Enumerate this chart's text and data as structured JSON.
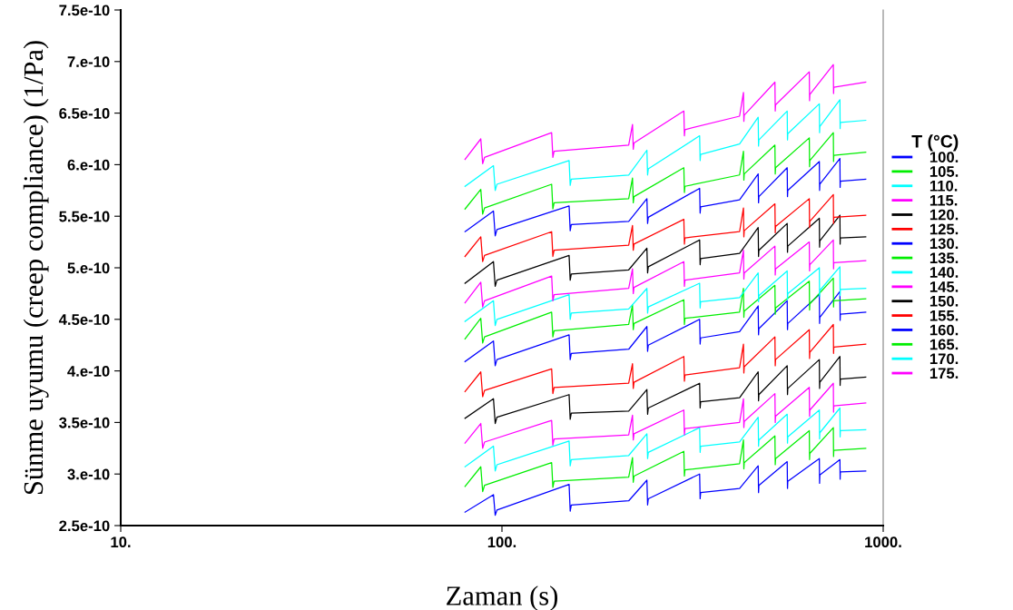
{
  "chart_data": {
    "type": "line",
    "xlabel": "Zaman (s)",
    "ylabel": "Sünme uyumu (creep compliance) (1/Pa)",
    "legend_title": "T (°C)",
    "log": "x",
    "xlim": [
      10,
      1000
    ],
    "xticks": [
      {
        "value": 10,
        "label": "10."
      },
      {
        "value": 100,
        "label": "100."
      },
      {
        "value": 1000,
        "label": "1000."
      }
    ],
    "ylim": [
      2.5e-10,
      7.5e-10
    ],
    "yticks": [
      {
        "value": 2.5e-10,
        "label": "2.5e-10"
      },
      {
        "value": 3e-10,
        "label": "3.e-10"
      },
      {
        "value": 3.5e-10,
        "label": "3.5e-10"
      },
      {
        "value": 4e-10,
        "label": "4.e-10"
      },
      {
        "value": 4.5e-10,
        "label": "4.5e-10"
      },
      {
        "value": 5e-10,
        "label": "5.e-10"
      },
      {
        "value": 5.5e-10,
        "label": "5.5e-10"
      },
      {
        "value": 6e-10,
        "label": "6.e-10"
      },
      {
        "value": 6.5e-10,
        "label": "6.5e-10"
      },
      {
        "value": 7e-10,
        "label": "7.e-10"
      },
      {
        "value": 7.5e-10,
        "label": "7.5e-10"
      }
    ],
    "grid": false,
    "legend": "right",
    "series": [
      {
        "name": "100.",
        "color": "#0000ff",
        "x": [
          80,
          95,
          96,
          97,
          150,
          151,
          152,
          215,
          240,
          241,
          242,
          330,
          331,
          332,
          420,
          470,
          471,
          472,
          560,
          561,
          562,
          680,
          681,
          682,
          770,
          771,
          772,
          900
        ],
        "values": [
          2.63e-10,
          2.8e-10,
          2.6e-10,
          2.65e-10,
          2.9e-10,
          2.64e-10,
          2.7e-10,
          2.74e-10,
          2.94e-10,
          2.7e-10,
          2.76e-10,
          3e-10,
          2.76e-10,
          2.82e-10,
          2.86e-10,
          3.08e-10,
          2.82e-10,
          2.89e-10,
          3.12e-10,
          2.86e-10,
          2.93e-10,
          3.15e-10,
          2.91e-10,
          2.99e-10,
          3.14e-10,
          2.95e-10,
          3.02e-10,
          3.03e-10
        ]
      },
      {
        "name": "105.",
        "color": "#00ee00",
        "x": [
          80,
          88,
          89,
          90,
          135,
          136,
          137,
          215,
          220,
          221,
          222,
          300,
          301,
          302,
          420,
          430,
          431,
          432,
          520,
          521,
          522,
          640,
          641,
          642,
          740,
          741,
          742,
          900
        ],
        "values": [
          2.88e-10,
          3.07e-10,
          2.83e-10,
          2.89e-10,
          3.11e-10,
          2.87e-10,
          2.93e-10,
          2.97e-10,
          3.16e-10,
          2.92e-10,
          2.98e-10,
          3.22e-10,
          2.98e-10,
          3.04e-10,
          3.1e-10,
          3.33e-10,
          3.05e-10,
          3.11e-10,
          3.37e-10,
          3.09e-10,
          3.15e-10,
          3.42e-10,
          3.14e-10,
          3.2e-10,
          3.45e-10,
          3.17e-10,
          3.23e-10,
          3.25e-10
        ]
      },
      {
        "name": "110.",
        "color": "#00ffff",
        "x": [
          80,
          95,
          96,
          97,
          150,
          151,
          152,
          215,
          240,
          241,
          242,
          330,
          331,
          332,
          420,
          470,
          471,
          472,
          560,
          561,
          562,
          680,
          681,
          682,
          770,
          771,
          772,
          900
        ],
        "values": [
          3.07e-10,
          3.27e-10,
          3.03e-10,
          3.09e-10,
          3.32e-10,
          3.08e-10,
          3.14e-10,
          3.18e-10,
          3.39e-10,
          3.15e-10,
          3.21e-10,
          3.45e-10,
          3.21e-10,
          3.27e-10,
          3.31e-10,
          3.55e-10,
          3.27e-10,
          3.33e-10,
          3.58e-10,
          3.3e-10,
          3.36e-10,
          3.62e-10,
          3.34e-10,
          3.4e-10,
          3.64e-10,
          3.36e-10,
          3.42e-10,
          3.43e-10
        ]
      },
      {
        "name": "115.",
        "color": "#ff00ff",
        "x": [
          80,
          88,
          89,
          90,
          135,
          136,
          137,
          215,
          220,
          221,
          222,
          300,
          301,
          302,
          420,
          430,
          431,
          432,
          520,
          521,
          522,
          640,
          641,
          642,
          740,
          741,
          742,
          900
        ],
        "values": [
          3.3e-10,
          3.49e-10,
          3.25e-10,
          3.31e-10,
          3.52e-10,
          3.28e-10,
          3.34e-10,
          3.38e-10,
          3.57e-10,
          3.33e-10,
          3.39e-10,
          3.62e-10,
          3.38e-10,
          3.44e-10,
          3.5e-10,
          3.73e-10,
          3.45e-10,
          3.51e-10,
          3.78e-10,
          3.5e-10,
          3.56e-10,
          3.84e-10,
          3.56e-10,
          3.62e-10,
          3.88e-10,
          3.6e-10,
          3.66e-10,
          3.69e-10
        ]
      },
      {
        "name": "120.",
        "color": "#000000",
        "x": [
          80,
          95,
          96,
          97,
          150,
          151,
          152,
          215,
          240,
          241,
          242,
          330,
          331,
          332,
          420,
          470,
          471,
          472,
          560,
          561,
          562,
          680,
          681,
          682,
          770,
          771,
          772,
          900
        ],
        "values": [
          3.54e-10,
          3.73e-10,
          3.49e-10,
          3.55e-10,
          3.77e-10,
          3.53e-10,
          3.59e-10,
          3.61e-10,
          3.82e-10,
          3.58e-10,
          3.64e-10,
          3.88e-10,
          3.64e-10,
          3.7e-10,
          3.74e-10,
          3.99e-10,
          3.71e-10,
          3.77e-10,
          4.05e-10,
          3.77e-10,
          3.83e-10,
          4.11e-10,
          3.83e-10,
          3.89e-10,
          4.14e-10,
          3.86e-10,
          3.92e-10,
          3.94e-10
        ]
      },
      {
        "name": "125.",
        "color": "#ff0000",
        "x": [
          80,
          88,
          89,
          90,
          135,
          136,
          137,
          215,
          220,
          221,
          222,
          300,
          301,
          302,
          420,
          430,
          431,
          432,
          520,
          521,
          522,
          640,
          641,
          642,
          740,
          741,
          742,
          900
        ],
        "values": [
          3.8e-10,
          3.99e-10,
          3.75e-10,
          3.81e-10,
          4.02e-10,
          3.78e-10,
          3.84e-10,
          3.88e-10,
          4.07e-10,
          3.83e-10,
          3.89e-10,
          4.14e-10,
          3.9e-10,
          3.96e-10,
          4.03e-10,
          4.26e-10,
          3.98e-10,
          4.04e-10,
          4.33e-10,
          4.05e-10,
          4.11e-10,
          4.4e-10,
          4.12e-10,
          4.18e-10,
          4.45e-10,
          4.17e-10,
          4.23e-10,
          4.26e-10
        ]
      },
      {
        "name": "130.",
        "color": "#0000ff",
        "x": [
          80,
          95,
          96,
          97,
          150,
          151,
          152,
          215,
          240,
          241,
          242,
          330,
          331,
          332,
          420,
          470,
          471,
          472,
          560,
          561,
          562,
          680,
          681,
          682,
          770,
          771,
          772,
          900
        ],
        "values": [
          4.09e-10,
          4.29e-10,
          4.05e-10,
          4.11e-10,
          4.35e-10,
          4.11e-10,
          4.17e-10,
          4.21e-10,
          4.43e-10,
          4.19e-10,
          4.25e-10,
          4.5e-10,
          4.26e-10,
          4.32e-10,
          4.38e-10,
          4.63e-10,
          4.35e-10,
          4.41e-10,
          4.68e-10,
          4.4e-10,
          4.46e-10,
          4.74e-10,
          4.46e-10,
          4.52e-10,
          4.77e-10,
          4.49e-10,
          4.55e-10,
          4.57e-10
        ]
      },
      {
        "name": "135.",
        "color": "#00ee00",
        "x": [
          80,
          88,
          89,
          90,
          135,
          136,
          137,
          215,
          220,
          221,
          222,
          300,
          301,
          302,
          420,
          430,
          431,
          432,
          520,
          521,
          522,
          640,
          641,
          642,
          740,
          741,
          742,
          900
        ],
        "values": [
          4.31e-10,
          4.51e-10,
          4.27e-10,
          4.33e-10,
          4.57e-10,
          4.33e-10,
          4.39e-10,
          4.45e-10,
          4.64e-10,
          4.4e-10,
          4.46e-10,
          4.69e-10,
          4.45e-10,
          4.51e-10,
          4.57e-10,
          4.8e-10,
          4.52e-10,
          4.58e-10,
          4.83e-10,
          4.55e-10,
          4.61e-10,
          4.87e-10,
          4.59e-10,
          4.65e-10,
          4.9e-10,
          4.62e-10,
          4.68e-10,
          4.7e-10
        ]
      },
      {
        "name": "140.",
        "color": "#00ffff",
        "x": [
          80,
          95,
          96,
          97,
          150,
          151,
          152,
          215,
          240,
          241,
          242,
          330,
          331,
          332,
          420,
          470,
          471,
          472,
          560,
          561,
          562,
          680,
          681,
          682,
          770,
          771,
          772,
          900
        ],
        "values": [
          4.48e-10,
          4.68e-10,
          4.44e-10,
          4.5e-10,
          4.74e-10,
          4.5e-10,
          4.56e-10,
          4.6e-10,
          4.8e-10,
          4.56e-10,
          4.62e-10,
          4.85e-10,
          4.61e-10,
          4.67e-10,
          4.71e-10,
          4.95e-10,
          4.67e-10,
          4.73e-10,
          4.97e-10,
          4.69e-10,
          4.75e-10,
          5e-10,
          4.72e-10,
          4.78e-10,
          5.01e-10,
          4.73e-10,
          4.79e-10,
          4.8e-10
        ]
      },
      {
        "name": "145.",
        "color": "#ff00ff",
        "x": [
          80,
          88,
          89,
          90,
          135,
          136,
          137,
          215,
          220,
          221,
          222,
          300,
          301,
          302,
          420,
          430,
          431,
          432,
          520,
          521,
          522,
          640,
          641,
          642,
          740,
          741,
          742,
          900
        ],
        "values": [
          4.66e-10,
          4.86e-10,
          4.62e-10,
          4.68e-10,
          4.92e-10,
          4.68e-10,
          4.74e-10,
          4.8e-10,
          4.99e-10,
          4.75e-10,
          4.81e-10,
          5.06e-10,
          4.82e-10,
          4.88e-10,
          4.95e-10,
          5.17e-10,
          4.89e-10,
          4.95e-10,
          5.21e-10,
          4.93e-10,
          4.99e-10,
          5.25e-10,
          4.97e-10,
          5.03e-10,
          5.27e-10,
          4.99e-10,
          5.05e-10,
          5.07e-10
        ]
      },
      {
        "name": "150.",
        "color": "#000000",
        "x": [
          80,
          95,
          96,
          97,
          150,
          151,
          152,
          215,
          240,
          241,
          242,
          330,
          331,
          332,
          420,
          470,
          471,
          472,
          560,
          561,
          562,
          680,
          681,
          682,
          770,
          771,
          772,
          900
        ],
        "values": [
          4.85e-10,
          5.06e-10,
          4.82e-10,
          4.88e-10,
          5.12e-10,
          4.88e-10,
          4.94e-10,
          4.98e-10,
          5.19e-10,
          4.95e-10,
          5.01e-10,
          5.27e-10,
          5.03e-10,
          5.09e-10,
          5.14e-10,
          5.39e-10,
          5.11e-10,
          5.17e-10,
          5.43e-10,
          5.15e-10,
          5.21e-10,
          5.48e-10,
          5.2e-10,
          5.26e-10,
          5.51e-10,
          5.23e-10,
          5.29e-10,
          5.3e-10
        ]
      },
      {
        "name": "155.",
        "color": "#ff0000",
        "x": [
          80,
          88,
          89,
          90,
          135,
          136,
          137,
          215,
          220,
          221,
          222,
          300,
          301,
          302,
          420,
          430,
          431,
          432,
          520,
          521,
          522,
          640,
          641,
          642,
          740,
          741,
          742,
          900
        ],
        "values": [
          5.11e-10,
          5.3e-10,
          5.06e-10,
          5.12e-10,
          5.35e-10,
          5.11e-10,
          5.17e-10,
          5.22e-10,
          5.41e-10,
          5.17e-10,
          5.23e-10,
          5.47e-10,
          5.23e-10,
          5.29e-10,
          5.35e-10,
          5.58e-10,
          5.3e-10,
          5.36e-10,
          5.62e-10,
          5.34e-10,
          5.4e-10,
          5.67e-10,
          5.39e-10,
          5.45e-10,
          5.71e-10,
          5.43e-10,
          5.49e-10,
          5.51e-10
        ]
      },
      {
        "name": "160.",
        "color": "#0000ff",
        "x": [
          80,
          95,
          96,
          97,
          150,
          151,
          152,
          215,
          240,
          241,
          242,
          330,
          331,
          332,
          420,
          470,
          471,
          472,
          560,
          561,
          562,
          680,
          681,
          682,
          770,
          771,
          772,
          900
        ],
        "values": [
          5.35e-10,
          5.55e-10,
          5.31e-10,
          5.37e-10,
          5.6e-10,
          5.36e-10,
          5.42e-10,
          5.45e-10,
          5.67e-10,
          5.43e-10,
          5.49e-10,
          5.77e-10,
          5.53e-10,
          5.59e-10,
          5.66e-10,
          5.91e-10,
          5.63e-10,
          5.69e-10,
          5.97e-10,
          5.69e-10,
          5.75e-10,
          6.03e-10,
          5.75e-10,
          5.81e-10,
          6.06e-10,
          5.78e-10,
          5.84e-10,
          5.86e-10
        ]
      },
      {
        "name": "165.",
        "color": "#00ee00",
        "x": [
          80,
          88,
          89,
          90,
          135,
          136,
          137,
          215,
          220,
          221,
          222,
          300,
          301,
          302,
          420,
          430,
          431,
          432,
          520,
          521,
          522,
          640,
          641,
          642,
          740,
          741,
          742,
          900
        ],
        "values": [
          5.57e-10,
          5.76e-10,
          5.52e-10,
          5.58e-10,
          5.81e-10,
          5.57e-10,
          5.63e-10,
          5.67e-10,
          5.87e-10,
          5.63e-10,
          5.69e-10,
          5.97e-10,
          5.73e-10,
          5.79e-10,
          5.9e-10,
          6.13e-10,
          5.85e-10,
          5.91e-10,
          6.19e-10,
          5.91e-10,
          5.97e-10,
          6.26e-10,
          5.98e-10,
          6.04e-10,
          6.31e-10,
          6.03e-10,
          6.09e-10,
          6.12e-10
        ]
      },
      {
        "name": "170.",
        "color": "#00ffff",
        "x": [
          80,
          95,
          96,
          97,
          150,
          151,
          152,
          215,
          240,
          241,
          242,
          330,
          331,
          332,
          420,
          470,
          471,
          472,
          560,
          561,
          562,
          680,
          681,
          682,
          770,
          771,
          772,
          900
        ],
        "values": [
          5.79e-10,
          5.99e-10,
          5.75e-10,
          5.81e-10,
          6.04e-10,
          5.8e-10,
          5.86e-10,
          5.9e-10,
          6.14e-10,
          5.9e-10,
          5.96e-10,
          6.28e-10,
          6.04e-10,
          6.1e-10,
          6.2e-10,
          6.46e-10,
          6.18e-10,
          6.24e-10,
          6.52e-10,
          6.24e-10,
          6.3e-10,
          6.59e-10,
          6.31e-10,
          6.37e-10,
          6.63e-10,
          6.35e-10,
          6.41e-10,
          6.43e-10
        ]
      },
      {
        "name": "175.",
        "color": "#ff00ff",
        "x": [
          80,
          88,
          89,
          90,
          135,
          136,
          137,
          215,
          220,
          221,
          222,
          300,
          301,
          302,
          420,
          430,
          431,
          432,
          520,
          521,
          522,
          640,
          641,
          642,
          740,
          741,
          742,
          900
        ],
        "values": [
          6.05e-10,
          6.25e-10,
          6.01e-10,
          6.07e-10,
          6.31e-10,
          6.07e-10,
          6.13e-10,
          6.19e-10,
          6.39e-10,
          6.15e-10,
          6.21e-10,
          6.52e-10,
          6.28e-10,
          6.34e-10,
          6.47e-10,
          6.7e-10,
          6.42e-10,
          6.48e-10,
          6.8e-10,
          6.52e-10,
          6.58e-10,
          6.9e-10,
          6.62e-10,
          6.68e-10,
          6.97e-10,
          6.69e-10,
          6.75e-10,
          6.8e-10
        ]
      }
    ]
  }
}
